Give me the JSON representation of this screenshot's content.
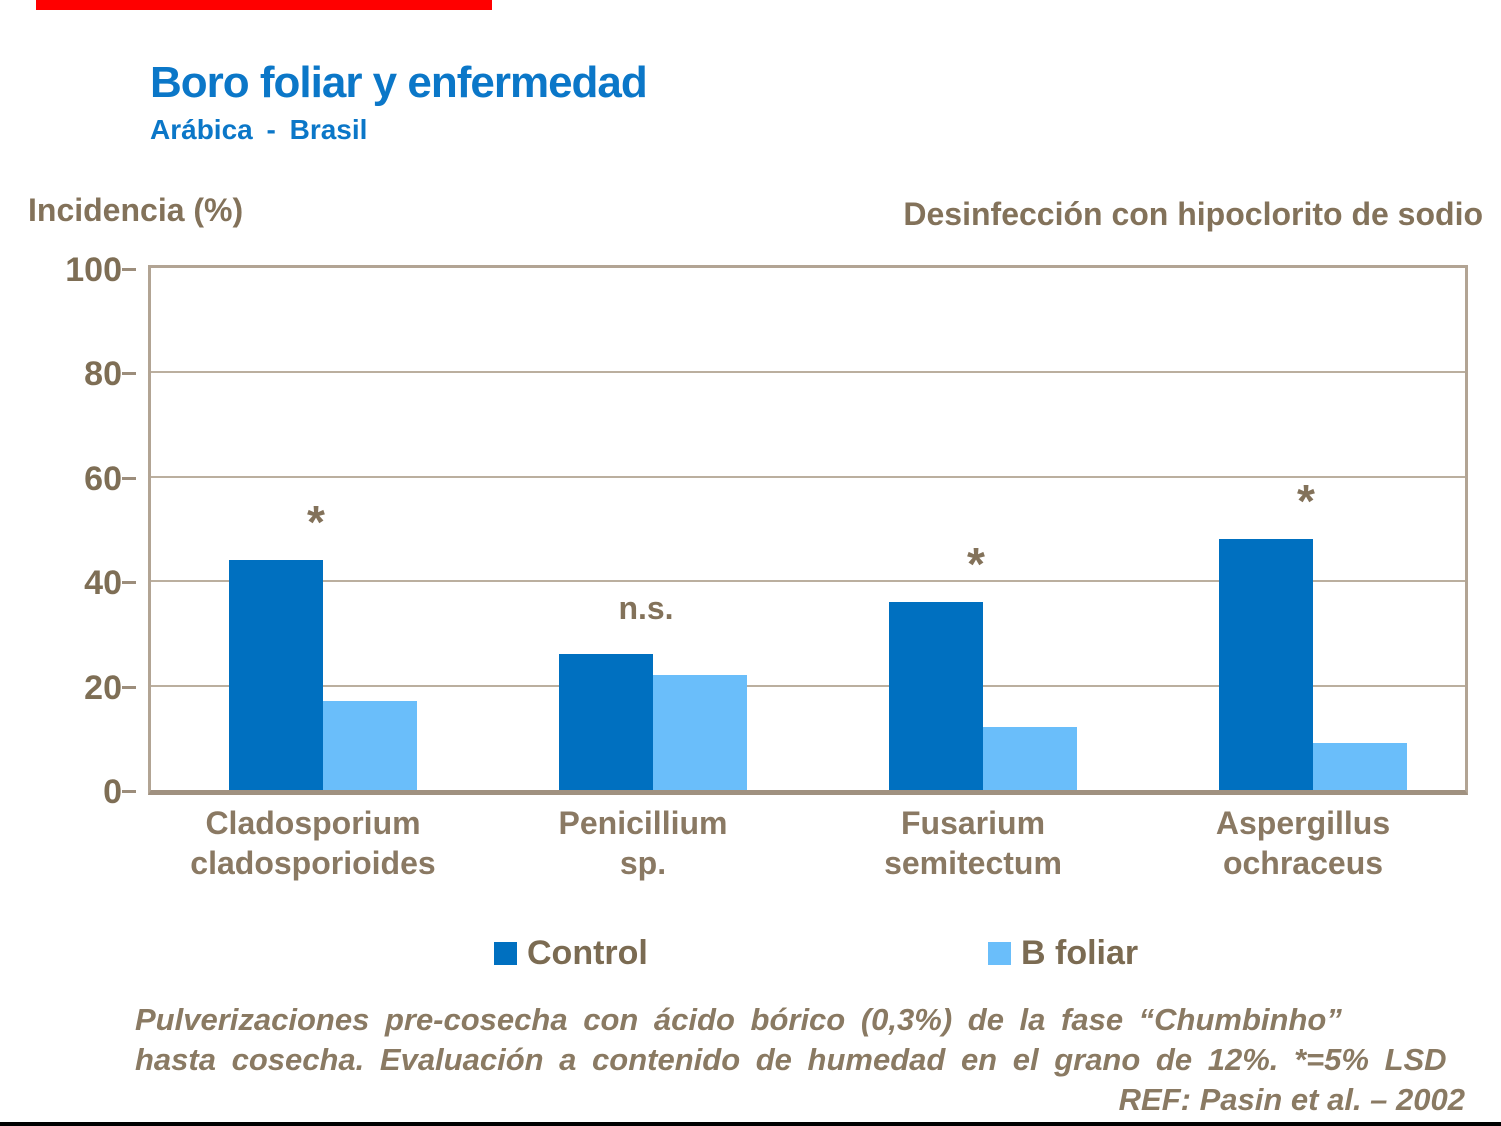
{
  "slide": {
    "title": "Boro foliar y enfermedad",
    "subtitle": "Arábica - Brasil",
    "accent_color": "#ff0000",
    "title_color": "#0b77c8"
  },
  "headers": {
    "left": "Incidencia (%)",
    "right": "Desinfección con hipoclorito de sodio"
  },
  "chart_data": {
    "type": "bar",
    "title": "Boro foliar y enfermedad",
    "ylabel": "Incidencia (%)",
    "xlabel": "",
    "ylim": [
      0,
      100
    ],
    "yticks": [
      0,
      20,
      40,
      60,
      80,
      100
    ],
    "grid": true,
    "legend_position": "bottom",
    "categories": [
      "Cladosporium cladosporioides",
      "Penicillium sp.",
      "Fusarium semitectum",
      "Aspergillus ochraceus"
    ],
    "category_lines": [
      [
        "Cladosporium",
        "cladosporioides"
      ],
      [
        "Penicillium",
        "sp."
      ],
      [
        "Fusarium",
        "semitectum"
      ],
      [
        "Aspergillus",
        "ochraceus"
      ]
    ],
    "series": [
      {
        "name": "Control",
        "color": "#0070c0",
        "values": [
          44,
          26,
          36,
          48
        ]
      },
      {
        "name": "B foliar",
        "color": "#6abefa",
        "values": [
          17,
          22,
          12,
          9
        ]
      }
    ],
    "significance": [
      "*",
      "n.s.",
      "*",
      "*"
    ]
  },
  "legend": {
    "items": [
      {
        "label": "Control",
        "color": "#0070c0"
      },
      {
        "label": "B foliar",
        "color": "#6abefa"
      }
    ]
  },
  "footer": {
    "line1": "Pulverizaciones pre-cosecha con ácido bórico (0,3%) de la fase “Chumbinho”",
    "line2": "hasta cosecha. Evaluación a contenido de humedad en el grano de 12%. *=5% LSD",
    "line3": "REF: Pasin et al. – 2002"
  }
}
